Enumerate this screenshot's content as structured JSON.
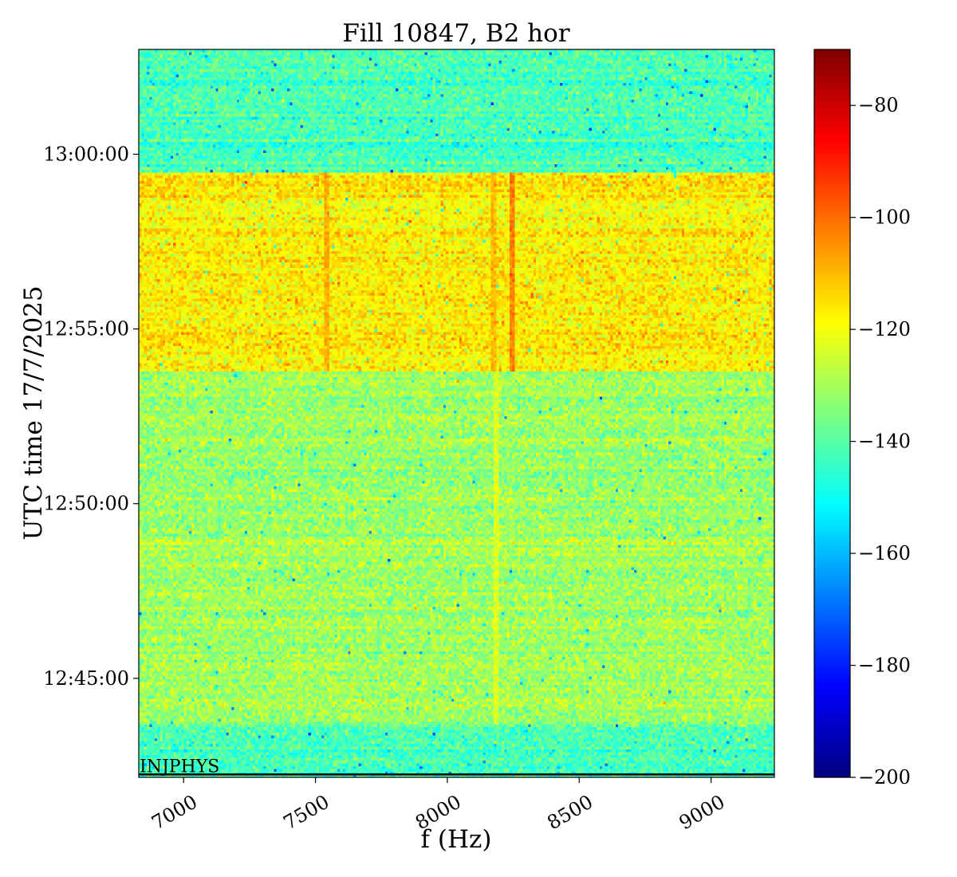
{
  "chart_data": {
    "type": "heatmap",
    "title": "Fill 10847, B2 hor",
    "xlabel": "f (Hz)",
    "ylabel": "UTC time 17/7/2025",
    "xlim": [
      6830,
      9240
    ],
    "ylim": [
      "12:42:10",
      "13:03:00"
    ],
    "x_ticks": [
      {
        "value": 7000,
        "label": "7000"
      },
      {
        "value": 7500,
        "label": "7500"
      },
      {
        "value": 8000,
        "label": "8000"
      },
      {
        "value": 8500,
        "label": "8500"
      },
      {
        "value": 9000,
        "label": "9000"
      }
    ],
    "y_ticks": [
      {
        "value": "12:45:00",
        "label": "12:45:00"
      },
      {
        "value": "12:50:00",
        "label": "12:50:00"
      },
      {
        "value": "12:55:00",
        "label": "12:55:00"
      },
      {
        "value": "13:00:00",
        "label": "13:00:00"
      }
    ],
    "colorbar": {
      "colormap": "jet",
      "range": [
        -200,
        -70
      ],
      "ticks": [
        {
          "value": -80,
          "label": "−80"
        },
        {
          "value": -100,
          "label": "−100"
        },
        {
          "value": -120,
          "label": "−120"
        },
        {
          "value": -140,
          "label": "−140"
        },
        {
          "value": -160,
          "label": "−160"
        },
        {
          "value": -180,
          "label": "−180"
        },
        {
          "value": -200,
          "label": "−200"
        }
      ]
    },
    "time_bands": [
      {
        "from": "12:42:10",
        "to": "12:43:40",
        "mean_level": -142
      },
      {
        "from": "12:43:40",
        "to": "12:53:48",
        "mean_level": -131
      },
      {
        "from": "12:53:48",
        "to": "12:59:28",
        "mean_level": -117
      },
      {
        "from": "12:59:28",
        "to": "13:03:00",
        "mean_level": -142
      }
    ],
    "lines": [
      {
        "freq": 8180,
        "level": -110,
        "from": "12:53:48",
        "to": "12:59:28"
      },
      {
        "freq": 8245,
        "level": -103,
        "from": "12:53:48",
        "to": "12:59:28"
      },
      {
        "freq": 7545,
        "level": -109,
        "from": "12:53:48",
        "to": "12:59:28"
      },
      {
        "freq": 8190,
        "level": -123,
        "from": "12:43:40",
        "to": "12:53:48"
      }
    ],
    "noise_std": 5,
    "annotation": {
      "time": "12:42:15",
      "label": "INJPHYS"
    }
  }
}
